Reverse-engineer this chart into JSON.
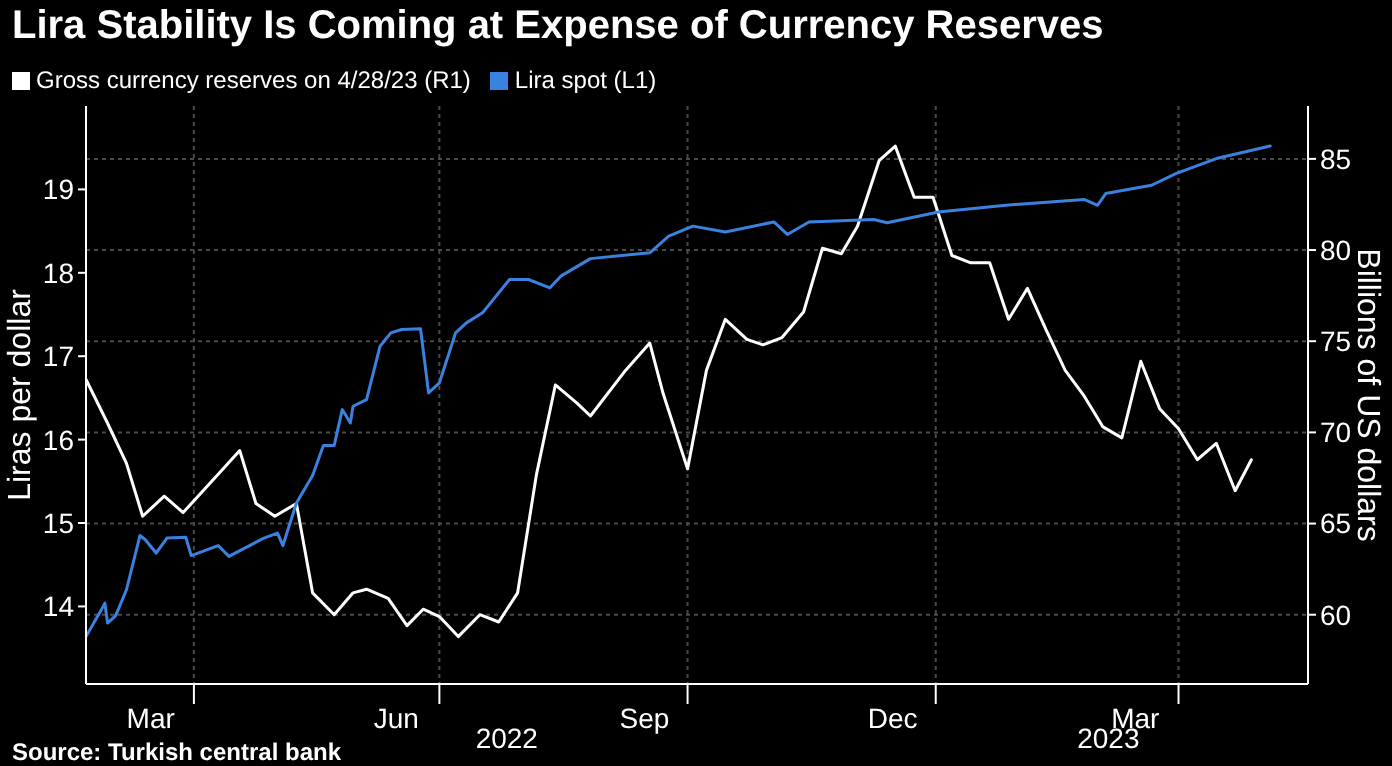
{
  "chart_data": {
    "type": "line",
    "title": "Lira Stability Is Coming at Expense of Currency Reserves",
    "ylabel": "Liras per dollar",
    "y2label": "Billions of US dollars",
    "legend": "top left",
    "grid": true,
    "line_style": "solid",
    "marker": "none",
    "xlim": [
      "2022-02-20",
      "2023-05-19"
    ],
    "xticks": [
      {
        "value": "2022-03-16",
        "label": "Mar"
      },
      {
        "value": "2022-04-01",
        "label": null
      },
      {
        "value": "2022-06-15",
        "label": "Jun"
      },
      {
        "value": "2022-07-01",
        "label": null
      },
      {
        "value": "2022-09-15",
        "label": "Sep"
      },
      {
        "value": "2022-10-01",
        "label": null
      },
      {
        "value": "2022-12-16",
        "label": "Dec"
      },
      {
        "value": "2023-01-01",
        "label": null
      },
      {
        "value": "2023-03-16",
        "label": "Mar"
      },
      {
        "value": "2023-04-01",
        "label": null
      }
    ],
    "ylim": [
      13.07,
      20
    ],
    "yticks": [
      14,
      15,
      16,
      17,
      18,
      19
    ],
    "y2lim": [
      56.2,
      87.9
    ],
    "y2ticks": [
      60,
      65,
      70,
      75,
      80,
      85
    ],
    "x2lim": [
      "2022-02-20",
      "2023-05-19"
    ],
    "x2ticks": [
      {
        "value": "2022-07-26",
        "label": "2022"
      },
      {
        "value": "2023-03-06",
        "label": "2023"
      }
    ],
    "annotations": [
      "Source: Turkish central bank"
    ],
    "series": [
      {
        "name": "Gross currency reserves on 4/28/23 (R1)",
        "color": "#ffffff",
        "axis": "y2",
        "x": [
          "2022-02-20",
          "2022-02-28",
          "2022-03-07",
          "2022-03-13",
          "2022-03-21",
          "2022-03-28",
          "2022-04-10",
          "2022-04-18",
          "2022-04-24",
          "2022-05-01",
          "2022-05-09",
          "2022-05-15",
          "2022-05-23",
          "2022-05-30",
          "2022-06-04",
          "2022-06-12",
          "2022-06-19",
          "2022-06-25",
          "2022-07-01",
          "2022-07-08",
          "2022-07-16",
          "2022-07-23",
          "2022-07-30",
          "2022-08-06",
          "2022-08-13",
          "2022-08-21",
          "2022-08-26",
          "2022-09-08",
          "2022-09-17",
          "2022-09-22",
          "2022-10-01",
          "2022-10-08",
          "2022-10-15",
          "2022-10-23",
          "2022-10-29",
          "2022-11-05",
          "2022-11-13",
          "2022-11-20",
          "2022-11-27",
          "2022-12-03",
          "2022-12-11",
          "2022-12-17",
          "2022-12-24",
          "2022-12-31",
          "2023-01-07",
          "2023-01-14",
          "2023-01-21",
          "2023-01-28",
          "2023-02-04",
          "2023-02-11",
          "2023-02-18",
          "2023-02-25",
          "2023-03-04",
          "2023-03-11",
          "2023-03-18",
          "2023-03-25",
          "2023-04-01",
          "2023-04-08",
          "2023-04-15",
          "2023-04-22",
          "2023-04-28"
        ],
        "values": [
          72.9,
          70.5,
          68.3,
          65.4,
          66.5,
          65.6,
          67.7,
          69.0,
          66.1,
          65.4,
          66.1,
          61.2,
          60.0,
          61.2,
          61.4,
          60.9,
          59.4,
          60.3,
          59.9,
          58.8,
          60.0,
          59.6,
          61.2,
          67.7,
          72.6,
          71.6,
          70.9,
          73.4,
          74.9,
          72.1,
          68.0,
          73.4,
          76.2,
          75.1,
          74.8,
          75.2,
          76.6,
          80.1,
          79.8,
          81.3,
          84.9,
          85.7,
          82.9,
          82.9,
          79.7,
          79.3,
          79.3,
          76.2,
          77.9,
          75.6,
          73.4,
          72.0,
          70.3,
          69.7,
          73.9,
          71.3,
          70.2,
          68.5,
          69.4,
          66.8,
          68.5
        ]
      },
      {
        "name": "Lira spot (L1)",
        "color": "#3a82e0",
        "axis": "y",
        "x": [
          "2022-02-20",
          "2022-02-25",
          "2022-02-27",
          "2022-02-28",
          "2022-03-03",
          "2022-03-07",
          "2022-03-12",
          "2022-03-14",
          "2022-03-18",
          "2022-03-22",
          "2022-03-29",
          "2022-03-31",
          "2022-04-10",
          "2022-04-14",
          "2022-04-27",
          "2022-05-02",
          "2022-05-04",
          "2022-05-09",
          "2022-05-15",
          "2022-05-19",
          "2022-05-23",
          "2022-05-26",
          "2022-05-29",
          "2022-05-30",
          "2022-06-04",
          "2022-06-09",
          "2022-06-13",
          "2022-06-17",
          "2022-06-24",
          "2022-06-27",
          "2022-07-01",
          "2022-07-07",
          "2022-07-11",
          "2022-07-17",
          "2022-07-27",
          "2022-08-03",
          "2022-08-11",
          "2022-08-15",
          "2022-08-26",
          "2022-09-17",
          "2022-09-24",
          "2022-10-03",
          "2022-10-15",
          "2022-11-02",
          "2022-11-07",
          "2022-11-15",
          "2022-12-09",
          "2022-12-14",
          "2023-01-02",
          "2023-01-27",
          "2023-02-25",
          "2023-03-02",
          "2023-03-05",
          "2023-03-22",
          "2023-03-31",
          "2023-04-15",
          "2023-05-05"
        ],
        "values": [
          13.64,
          13.92,
          14.04,
          13.8,
          13.89,
          14.2,
          14.85,
          14.8,
          14.64,
          14.82,
          14.83,
          14.61,
          14.73,
          14.6,
          14.82,
          14.88,
          14.73,
          15.24,
          15.57,
          15.93,
          15.93,
          16.36,
          16.2,
          16.4,
          16.48,
          17.12,
          17.28,
          17.32,
          17.33,
          16.56,
          16.68,
          17.28,
          17.4,
          17.52,
          17.92,
          17.92,
          17.82,
          17.96,
          18.17,
          18.24,
          18.44,
          18.56,
          18.49,
          18.61,
          18.46,
          18.61,
          18.64,
          18.6,
          18.73,
          18.81,
          18.88,
          18.81,
          18.95,
          19.05,
          19.19,
          19.37,
          19.52
        ]
      }
    ]
  }
}
